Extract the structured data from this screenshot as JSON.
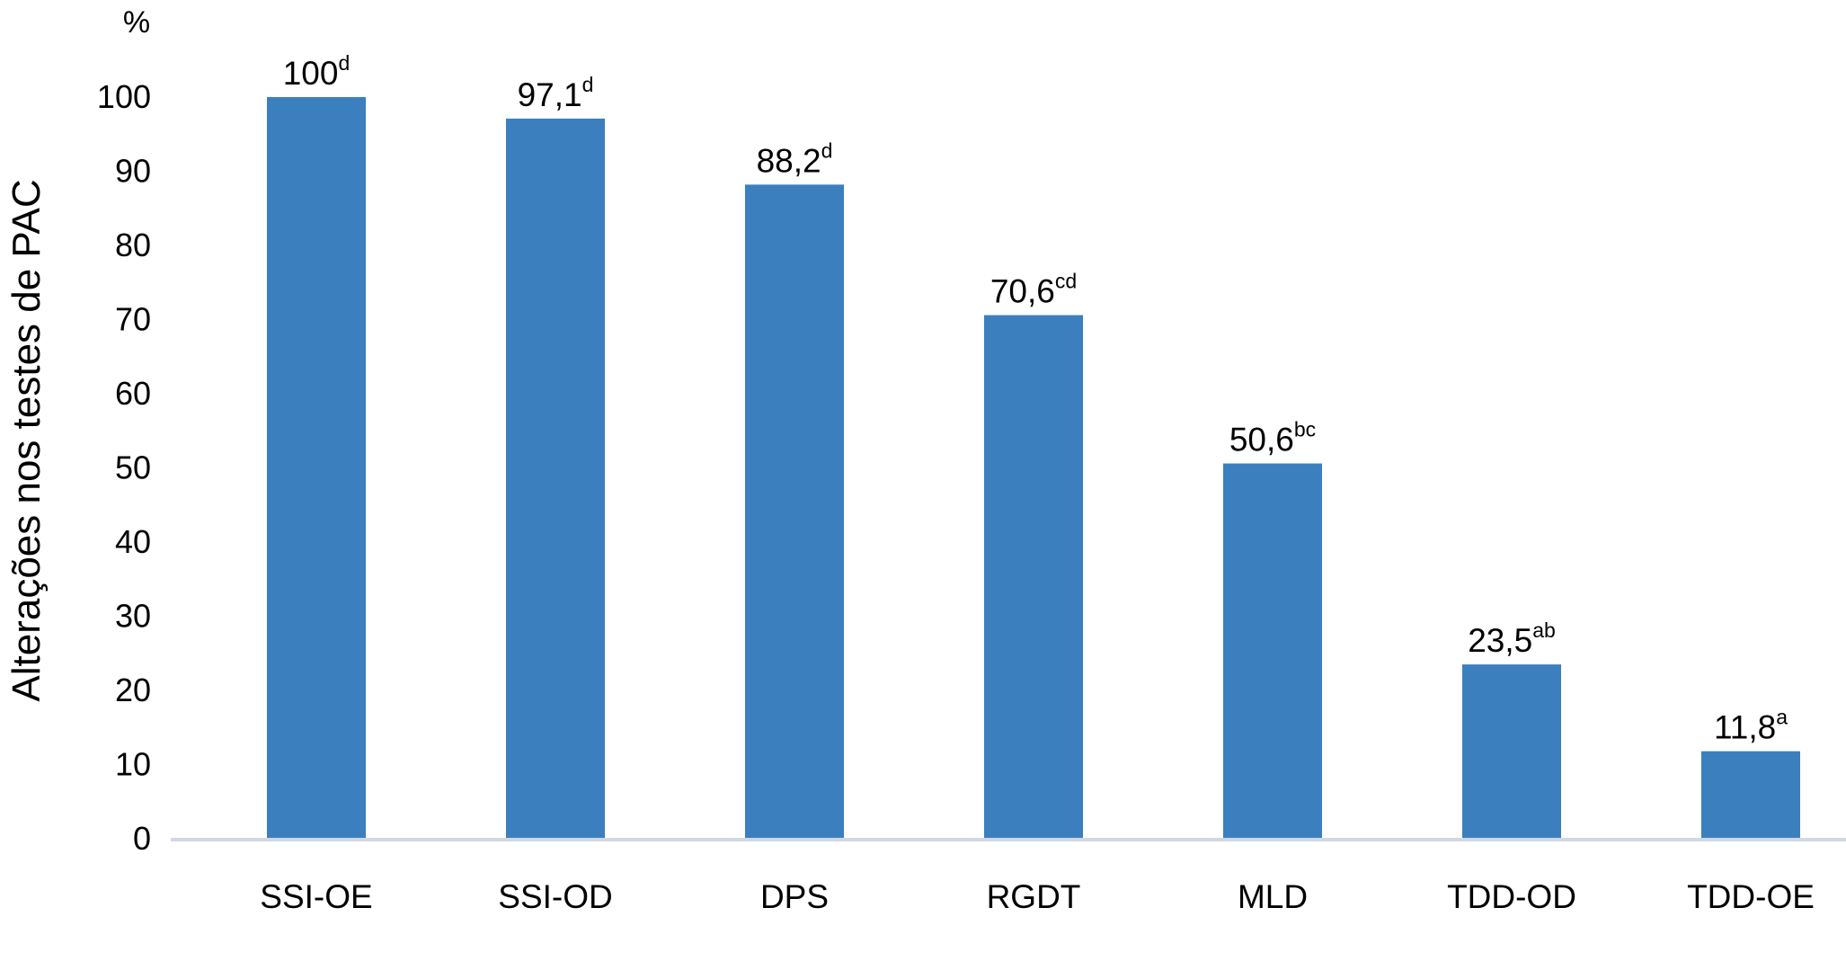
{
  "chart_data": {
    "type": "bar",
    "categories": [
      "SSI-OE",
      "SSI-OD",
      "DPS",
      "RGDT",
      "MLD",
      "TDD-OD",
      "TDD-OE"
    ],
    "values": [
      100,
      97.1,
      88.2,
      70.6,
      50.6,
      23.5,
      11.8
    ],
    "value_labels": [
      "100",
      "97,1",
      "88,2",
      "70,6",
      "50,6",
      "23,5",
      "11,8"
    ],
    "significance_letters": [
      "d",
      "d",
      "d",
      "cd",
      "bc",
      "ab",
      "a"
    ],
    "ylabel": "Alterações nos testes de PAC",
    "yunit": "%",
    "ylim": [
      0,
      100
    ],
    "yticks": [
      0,
      10,
      20,
      30,
      40,
      50,
      60,
      70,
      80,
      90,
      100
    ],
    "grid": false,
    "legend": "none",
    "bar_color": "#3b7fbf",
    "axis_color": "#d0d8e2"
  }
}
